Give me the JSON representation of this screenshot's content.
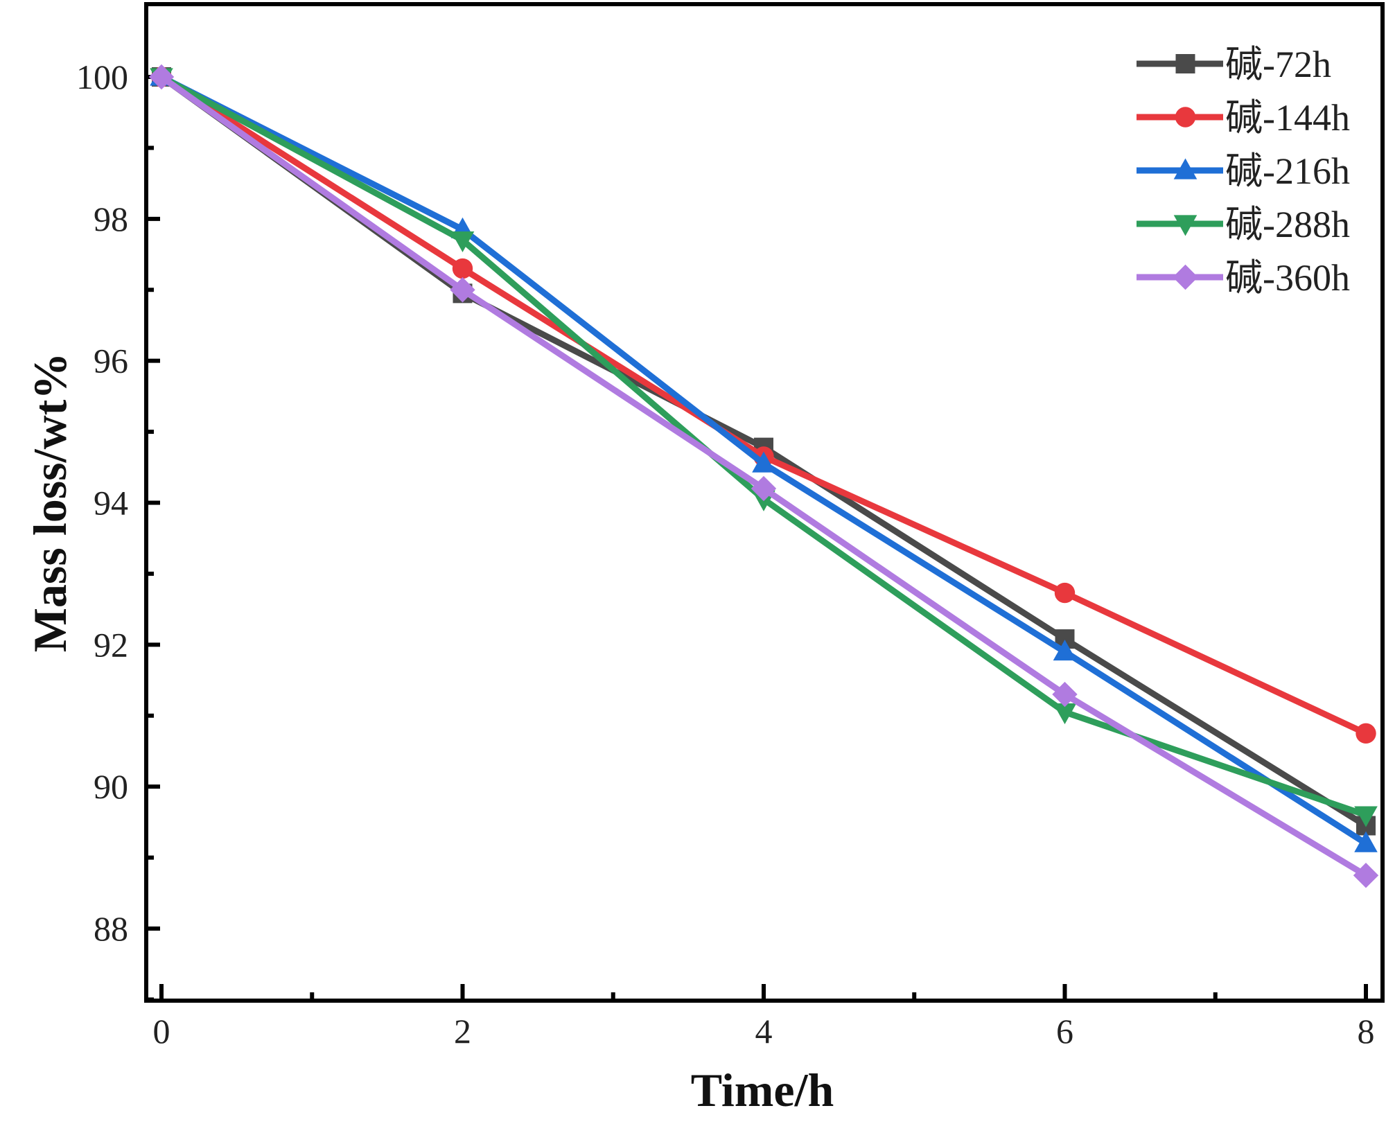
{
  "chart_data": {
    "type": "line",
    "title": "",
    "xlabel": "Time/h",
    "ylabel": "Mass loss/wt%",
    "xlim": [
      0,
      8
    ],
    "ylim": [
      87,
      101
    ],
    "xticks": [
      0,
      2,
      4,
      6,
      8
    ],
    "yticks": [
      88,
      90,
      92,
      94,
      96,
      98,
      100
    ],
    "x": [
      0,
      2,
      4,
      6,
      8
    ],
    "grid": false,
    "legend_position": "top-right",
    "series": [
      {
        "name": "碱-72h",
        "color": "#4a4a4a",
        "marker": "square",
        "values": [
          100.0,
          96.95,
          94.78,
          92.08,
          89.45
        ]
      },
      {
        "name": "碱-144h",
        "color": "#e8383d",
        "marker": "circle",
        "values": [
          100.0,
          97.3,
          94.65,
          92.73,
          90.75
        ]
      },
      {
        "name": "碱-216h",
        "color": "#1f6fd6",
        "marker": "triangle-up",
        "values": [
          100.0,
          97.85,
          94.55,
          91.9,
          89.2
        ]
      },
      {
        "name": "碱-288h",
        "color": "#2e9e5b",
        "marker": "triangle-down",
        "values": [
          100.0,
          97.7,
          94.05,
          91.05,
          89.6
        ]
      },
      {
        "name": "碱-360h",
        "color": "#b07be0",
        "marker": "diamond",
        "values": [
          100.0,
          97.0,
          94.2,
          91.3,
          88.75
        ]
      }
    ]
  }
}
